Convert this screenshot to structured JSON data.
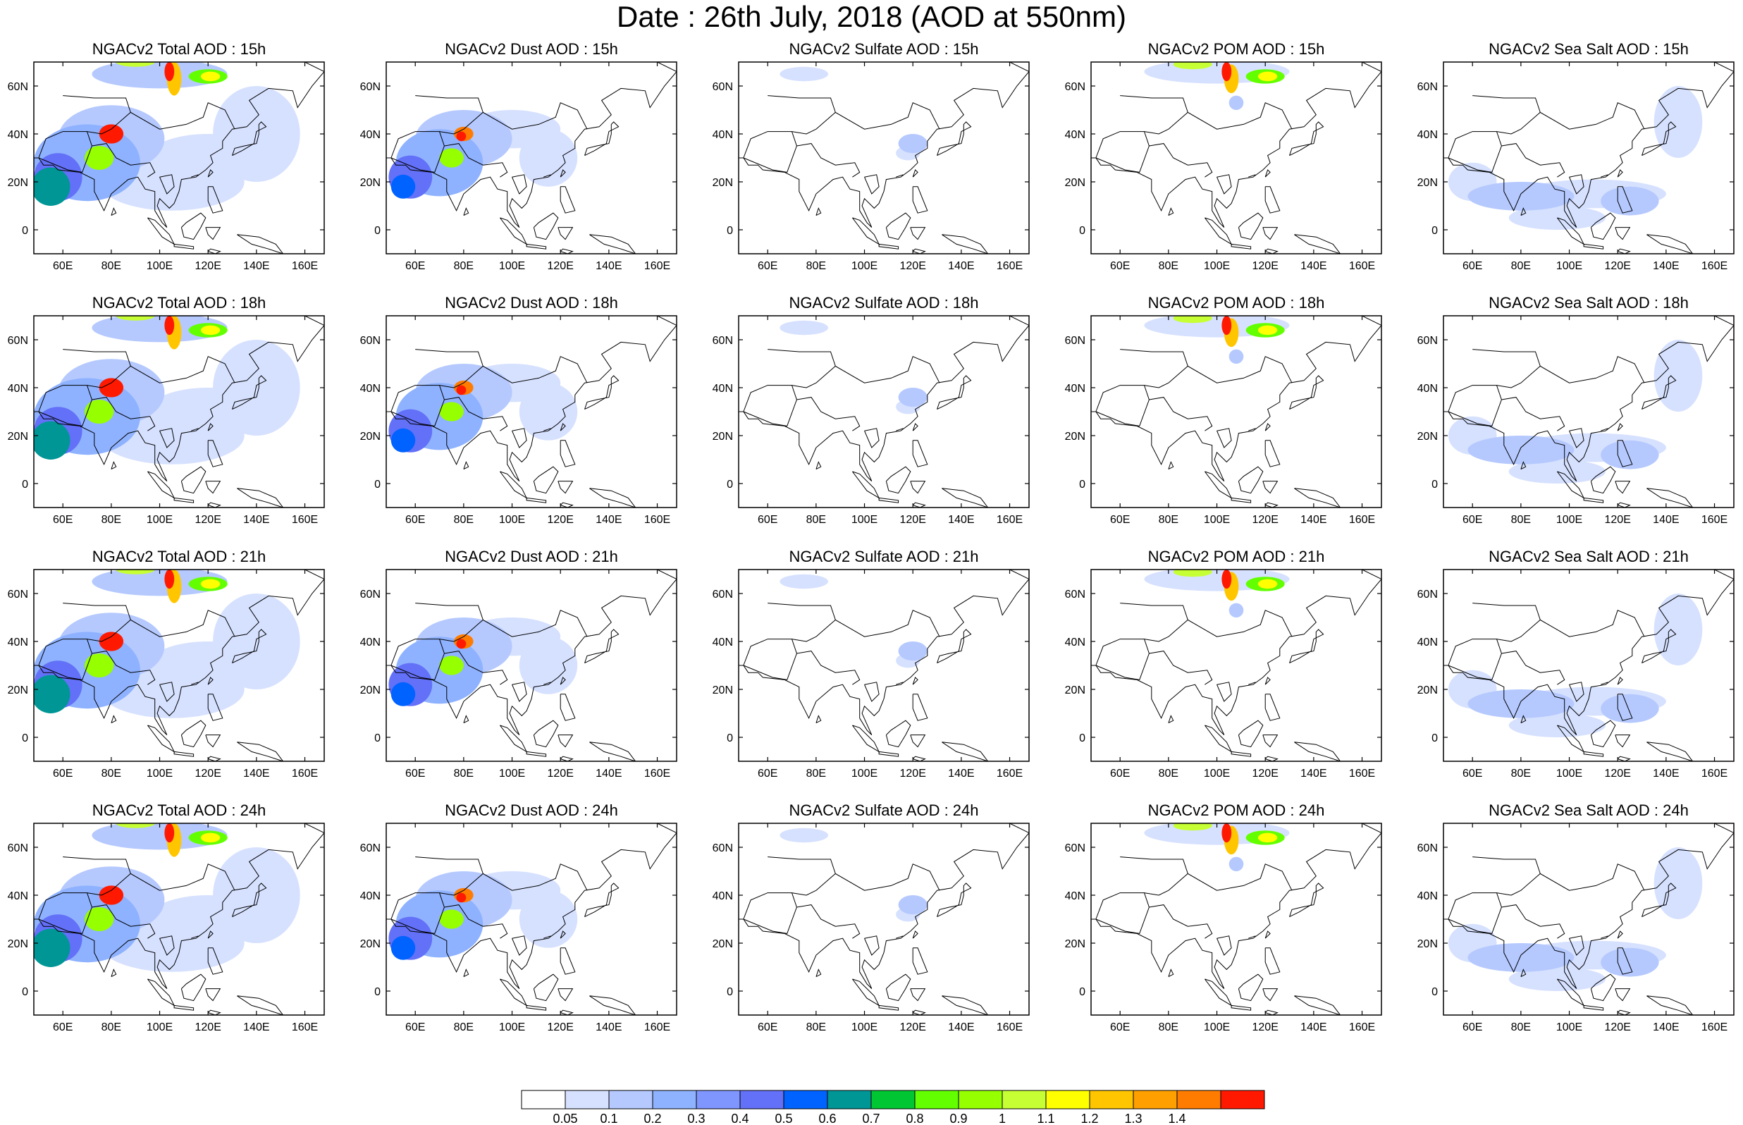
{
  "title": "Date : 26th July, 2018 (AOD at 550nm)",
  "panels": [
    {
      "title": "NGACv2 Total AOD : 15h",
      "species": "total"
    },
    {
      "title": "NGACv2 Dust AOD : 15h",
      "species": "dust"
    },
    {
      "title": "NGACv2 Sulfate AOD : 15h",
      "species": "sulfate"
    },
    {
      "title": "NGACv2 POM AOD : 15h",
      "species": "pom"
    },
    {
      "title": "NGACv2 Sea Salt AOD : 15h",
      "species": "seasalt"
    },
    {
      "title": "NGACv2 Total AOD : 18h",
      "species": "total"
    },
    {
      "title": "NGACv2 Dust AOD : 18h",
      "species": "dust"
    },
    {
      "title": "NGACv2 Sulfate AOD : 18h",
      "species": "sulfate"
    },
    {
      "title": "NGACv2 POM AOD : 18h",
      "species": "pom"
    },
    {
      "title": "NGACv2 Sea Salt AOD : 18h",
      "species": "seasalt"
    },
    {
      "title": "NGACv2 Total AOD : 21h",
      "species": "total"
    },
    {
      "title": "NGACv2 Dust AOD : 21h",
      "species": "dust"
    },
    {
      "title": "NGACv2 Sulfate AOD : 21h",
      "species": "sulfate"
    },
    {
      "title": "NGACv2 POM AOD : 21h",
      "species": "pom"
    },
    {
      "title": "NGACv2 Sea Salt AOD : 21h",
      "species": "seasalt"
    },
    {
      "title": "NGACv2 Total AOD : 24h",
      "species": "total"
    },
    {
      "title": "NGACv2 Dust AOD : 24h",
      "species": "dust"
    },
    {
      "title": "NGACv2 Sulfate AOD : 24h",
      "species": "sulfate"
    },
    {
      "title": "NGACv2 POM AOD : 24h",
      "species": "pom"
    },
    {
      "title": "NGACv2 Sea Salt  AOD : 24h",
      "species": "seasalt"
    }
  ],
  "lon_ticks": [
    "60E",
    "80E",
    "100E",
    "120E",
    "140E",
    "160E"
  ],
  "lat_ticks": [
    "60N",
    "40N",
    "20N",
    "0"
  ],
  "colorbar": {
    "labels": [
      "0.05",
      "0.1",
      "0.2",
      "0.3",
      "0.4",
      "0.5",
      "0.6",
      "0.7",
      "0.8",
      "0.9",
      "1",
      "1.1",
      "1.2",
      "1.3",
      "1.4"
    ],
    "colors": [
      "#ffffff",
      "#d6e1ff",
      "#b5c9ff",
      "#8eb2ff",
      "#7f96ff",
      "#6370f8",
      "#0063ff",
      "#009696",
      "#00c633",
      "#63ff00",
      "#96ff00",
      "#c6ff33",
      "#ffff00",
      "#ffc600",
      "#ffa000",
      "#ff7c00",
      "#ff1900"
    ]
  }
}
